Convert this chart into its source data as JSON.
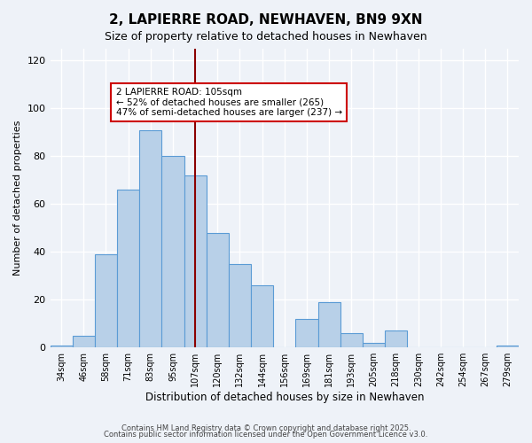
{
  "title": "2, LAPIERRE ROAD, NEWHAVEN, BN9 9XN",
  "subtitle": "Size of property relative to detached houses in Newhaven",
  "xlabel": "Distribution of detached houses by size in Newhaven",
  "ylabel": "Number of detached properties",
  "bin_labels": [
    "34sqm",
    "46sqm",
    "58sqm",
    "71sqm",
    "83sqm",
    "95sqm",
    "107sqm",
    "120sqm",
    "132sqm",
    "144sqm",
    "156sqm",
    "169sqm",
    "181sqm",
    "193sqm",
    "205sqm",
    "218sqm",
    "230sqm",
    "242sqm",
    "254sqm",
    "267sqm",
    "279sqm"
  ],
  "bar_heights": [
    1,
    5,
    39,
    66,
    91,
    80,
    72,
    48,
    35,
    26,
    0,
    12,
    19,
    6,
    2,
    7,
    0,
    0,
    0,
    0,
    1
  ],
  "bar_color": "#b8d0e8",
  "bar_edge_color": "#5b9bd5",
  "vline_x_label": "107sqm",
  "vline_color": "#8b0000",
  "annotation_title": "2 LAPIERRE ROAD: 105sqm",
  "annotation_line1": "← 52% of detached houses are smaller (265)",
  "annotation_line2": "47% of semi-detached houses are larger (237) →",
  "annotation_box_color": "#ffffff",
  "annotation_box_edge": "#cc0000",
  "ylim": [
    0,
    125
  ],
  "yticks": [
    0,
    20,
    40,
    60,
    80,
    100,
    120
  ],
  "footnote1": "Contains HM Land Registry data © Crown copyright and database right 2025.",
  "footnote2": "Contains public sector information licensed under the Open Government Licence v3.0.",
  "background_color": "#eef2f8"
}
